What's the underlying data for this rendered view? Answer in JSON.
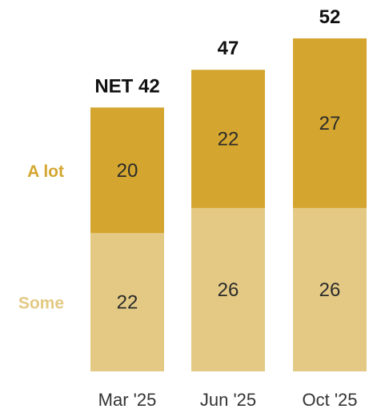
{
  "chart_data": {
    "type": "bar",
    "stacked": true,
    "categories": [
      "Mar '25",
      "Jun '25",
      "Oct '25"
    ],
    "series": [
      {
        "name": "Some",
        "values": [
          22,
          26,
          26
        ],
        "color": "#e3c984"
      },
      {
        "name": "A lot",
        "values": [
          20,
          22,
          27
        ],
        "color": "#d4a62f"
      }
    ],
    "totals": [
      42,
      47,
      52
    ],
    "total_labels": [
      "NET 42",
      "47",
      "52"
    ],
    "ylim": [
      0,
      52
    ],
    "grid": false,
    "legend": "left"
  }
}
